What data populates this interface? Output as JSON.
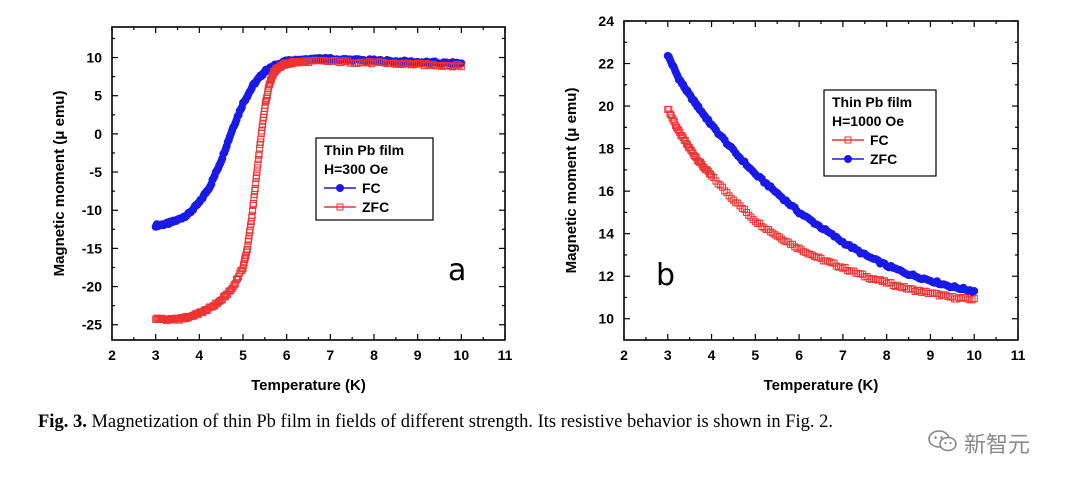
{
  "chart_data": [
    {
      "type": "scatter",
      "panel_label": "a",
      "title": "",
      "xlabel": "Temperature (K)",
      "ylabel": "Magnetic moment (μ emu)",
      "xlim": [
        2,
        11
      ],
      "ylim": [
        -27,
        14
      ],
      "xticks": [
        2,
        3,
        4,
        5,
        6,
        7,
        8,
        9,
        10,
        11
      ],
      "yticks": [
        -25,
        -20,
        -15,
        -10,
        -5,
        0,
        5,
        10
      ],
      "legend": {
        "title_lines": [
          "Thin Pb film",
          "H=300 Oe"
        ],
        "placement": "center-right"
      },
      "series": [
        {
          "name": "FC",
          "color": "#1a1ae6",
          "marker": "filled-circle",
          "x": [
            3.0,
            3.25,
            3.5,
            3.75,
            4.0,
            4.25,
            4.5,
            4.75,
            5.0,
            5.25,
            5.5,
            5.75,
            6.0,
            6.25,
            6.5,
            6.75,
            7.0,
            7.5,
            8.0,
            8.5,
            9.0,
            9.5,
            10.0
          ],
          "y": [
            -12.0,
            -11.8,
            -11.3,
            -10.5,
            -9.0,
            -6.8,
            -3.5,
            0.5,
            4.0,
            6.5,
            8.2,
            9.0,
            9.5,
            9.6,
            9.7,
            9.8,
            9.8,
            9.7,
            9.6,
            9.5,
            9.4,
            9.3,
            9.2
          ]
        },
        {
          "name": "ZFC",
          "color": "#ee3333",
          "marker": "open-square",
          "x": [
            3.0,
            3.25,
            3.5,
            3.75,
            4.0,
            4.25,
            4.5,
            4.75,
            5.0,
            5.1,
            5.2,
            5.3,
            5.4,
            5.5,
            5.6,
            5.7,
            5.8,
            6.0,
            6.25,
            6.5,
            7.0,
            7.5,
            8.0,
            8.5,
            9.0,
            9.5,
            10.0
          ],
          "y": [
            -24.2,
            -24.3,
            -24.3,
            -24.0,
            -23.5,
            -22.8,
            -21.8,
            -20.3,
            -17.5,
            -15.0,
            -11.0,
            -6.0,
            -1.0,
            3.5,
            6.5,
            8.0,
            8.7,
            9.2,
            9.4,
            9.5,
            9.5,
            9.4,
            9.3,
            9.2,
            9.1,
            9.0,
            8.9
          ]
        }
      ]
    },
    {
      "type": "scatter",
      "panel_label": "b",
      "title": "",
      "xlabel": "Temperature (K)",
      "ylabel": "Magnetic moment (μ emu)",
      "xlim": [
        2,
        11
      ],
      "ylim": [
        9,
        24
      ],
      "xticks": [
        2,
        3,
        4,
        5,
        6,
        7,
        8,
        9,
        10,
        11
      ],
      "yticks": [
        10,
        12,
        14,
        16,
        18,
        20,
        22,
        24
      ],
      "legend": {
        "title_lines": [
          "Thin Pb film",
          "H=1000 Oe"
        ],
        "placement": "top-right"
      },
      "series": [
        {
          "name": "FC",
          "color": "#ee3333",
          "marker": "open-square",
          "x": [
            3.0,
            3.25,
            3.5,
            3.75,
            4.0,
            4.5,
            5.0,
            5.5,
            6.0,
            6.5,
            7.0,
            7.5,
            8.0,
            8.5,
            9.0,
            9.5,
            10.0
          ],
          "y": [
            19.9,
            18.8,
            18.0,
            17.3,
            16.7,
            15.6,
            14.6,
            13.9,
            13.3,
            12.8,
            12.4,
            12.0,
            11.7,
            11.4,
            11.2,
            11.0,
            10.9
          ]
        },
        {
          "name": "ZFC",
          "color": "#1a1ae6",
          "marker": "filled-circle",
          "x": [
            3.0,
            3.25,
            3.5,
            3.75,
            4.0,
            4.5,
            5.0,
            5.5,
            6.0,
            6.5,
            7.0,
            7.5,
            8.0,
            8.5,
            9.0,
            9.5,
            10.0
          ],
          "y": [
            22.4,
            21.3,
            20.5,
            19.8,
            19.1,
            17.9,
            16.8,
            15.9,
            15.0,
            14.3,
            13.6,
            13.0,
            12.5,
            12.1,
            11.8,
            11.5,
            11.3
          ]
        }
      ]
    }
  ],
  "caption": {
    "label": "Fig. 3.",
    "text": " Magnetization of thin Pb film in fields of different strength. Its resistive behavior is shown in Fig. 2."
  },
  "watermark": {
    "text": "新智元",
    "icon": "wechat-icon"
  }
}
